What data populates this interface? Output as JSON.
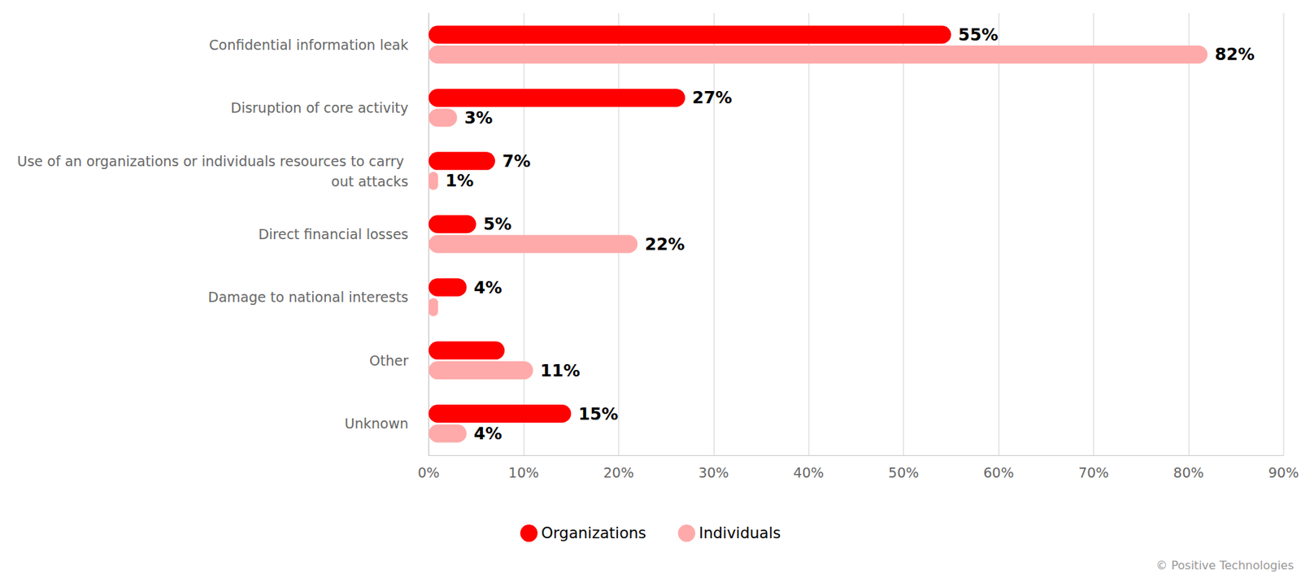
{
  "chart_data": {
    "type": "bar",
    "orientation": "horizontal",
    "categories": [
      "Confidential information leak",
      "Disruption of core activity",
      "Use of an organizations or individuals resources to carry out attacks",
      "Direct financial losses",
      "Damage to national interests",
      "Other",
      "Unknown"
    ],
    "series": [
      {
        "name": "Organizations",
        "color": "#ff0000",
        "values": [
          55,
          27,
          7,
          5,
          4,
          8,
          15
        ],
        "value_labels": [
          "55%",
          "27%",
          "7%",
          "5%",
          "4%",
          null,
          "15%"
        ]
      },
      {
        "name": "Individuals",
        "color": "#ffaaaa",
        "values": [
          82,
          3,
          1,
          22,
          1,
          11,
          4
        ],
        "value_labels": [
          "82%",
          "3%",
          "1%",
          "22%",
          null,
          "11%",
          "4%"
        ]
      }
    ],
    "xlim": [
      0,
      90
    ],
    "xticks": [
      {
        "value": 0,
        "label": "0%"
      },
      {
        "value": 10,
        "label": "10%"
      },
      {
        "value": 20,
        "label": "20%"
      },
      {
        "value": 30,
        "label": "30%"
      },
      {
        "value": 40,
        "label": "40%"
      },
      {
        "value": 50,
        "label": "50%"
      },
      {
        "value": 60,
        "label": "60%"
      },
      {
        "value": 70,
        "label": "70%"
      },
      {
        "value": 80,
        "label": "80%"
      },
      {
        "value": 90,
        "label": "90%"
      }
    ],
    "grid": true,
    "legend": "bottom",
    "data_labels": true,
    "source": "© Positive Technologies"
  }
}
